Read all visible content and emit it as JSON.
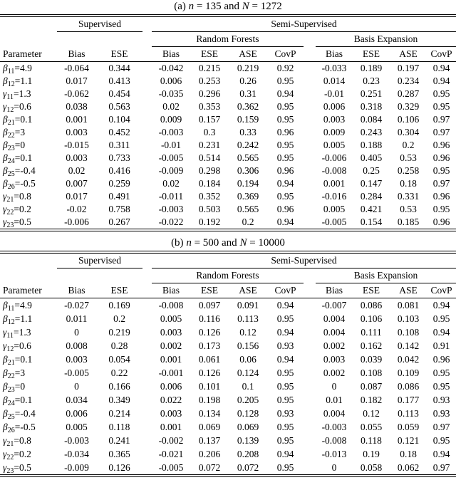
{
  "headers": {
    "parameter": "Parameter",
    "supervised": "Supervised",
    "semi_supervised": "Semi-Supervised",
    "random_forests": "Random Forests",
    "basis_expansion": "Basis Expansion",
    "bias": "Bias",
    "ese": "ESE",
    "ase": "ASE",
    "covp": "CovP"
  },
  "colors": {
    "text": "#000000",
    "background": "#ffffff",
    "rule": "#000000"
  },
  "tables": [
    {
      "id": "a",
      "caption_parts": [
        {
          "t": "(a) "
        },
        {
          "t": "n",
          "i": true
        },
        {
          "t": " = 135 and "
        },
        {
          "t": "N",
          "i": true
        },
        {
          "t": " = 1272"
        }
      ],
      "rows": [
        {
          "param": {
            "sym": "β",
            "sub": "11",
            "eq": "=4.9"
          },
          "values": [
            "-0.064",
            "0.344",
            "-0.042",
            "0.215",
            "0.219",
            "0.92",
            "-0.033",
            "0.189",
            "0.197",
            "0.94"
          ]
        },
        {
          "param": {
            "sym": "β",
            "sub": "12",
            "eq": "=1.1"
          },
          "values": [
            "0.017",
            "0.413",
            "0.006",
            "0.253",
            "0.26",
            "0.95",
            "0.014",
            "0.23",
            "0.234",
            "0.94"
          ]
        },
        {
          "param": {
            "sym": "γ",
            "sub": "11",
            "eq": "=1.3"
          },
          "values": [
            "-0.062",
            "0.454",
            "-0.035",
            "0.296",
            "0.31",
            "0.94",
            "-0.01",
            "0.251",
            "0.287",
            "0.95"
          ]
        },
        {
          "param": {
            "sym": "γ",
            "sub": "12",
            "eq": "=0.6"
          },
          "values": [
            "0.038",
            "0.563",
            "0.02",
            "0.353",
            "0.362",
            "0.95",
            "0.006",
            "0.318",
            "0.329",
            "0.95"
          ]
        },
        {
          "param": {
            "sym": "β",
            "sub": "21",
            "eq": "=0.1"
          },
          "values": [
            "0.001",
            "0.104",
            "0.009",
            "0.157",
            "0.159",
            "0.95",
            "0.003",
            "0.084",
            "0.106",
            "0.97"
          ]
        },
        {
          "param": {
            "sym": "β",
            "sub": "22",
            "eq": "=3"
          },
          "values": [
            "0.003",
            "0.452",
            "-0.003",
            "0.3",
            "0.33",
            "0.96",
            "0.009",
            "0.243",
            "0.304",
            "0.97"
          ]
        },
        {
          "param": {
            "sym": "β",
            "sub": "23",
            "eq": "=0"
          },
          "values": [
            "-0.015",
            "0.311",
            "-0.01",
            "0.231",
            "0.242",
            "0.95",
            "0.005",
            "0.188",
            "0.2",
            "0.96"
          ]
        },
        {
          "param": {
            "sym": "β",
            "sub": "24",
            "eq": "=0.1"
          },
          "values": [
            "0.003",
            "0.733",
            "-0.005",
            "0.514",
            "0.565",
            "0.95",
            "-0.006",
            "0.405",
            "0.53",
            "0.96"
          ]
        },
        {
          "param": {
            "sym": "β",
            "sub": "25",
            "eq": "=-0.4"
          },
          "values": [
            "0.02",
            "0.416",
            "-0.009",
            "0.298",
            "0.306",
            "0.96",
            "-0.008",
            "0.25",
            "0.258",
            "0.95"
          ]
        },
        {
          "param": {
            "sym": "β",
            "sub": "26",
            "eq": "=-0.5"
          },
          "values": [
            "0.007",
            "0.259",
            "0.02",
            "0.184",
            "0.194",
            "0.94",
            "0.001",
            "0.147",
            "0.18",
            "0.97"
          ]
        },
        {
          "param": {
            "sym": "γ",
            "sub": "21",
            "eq": "=0.8"
          },
          "values": [
            "0.017",
            "0.491",
            "-0.011",
            "0.352",
            "0.369",
            "0.95",
            "-0.016",
            "0.284",
            "0.331",
            "0.96"
          ]
        },
        {
          "param": {
            "sym": "γ",
            "sub": "22",
            "eq": "=0.2"
          },
          "values": [
            "-0.02",
            "0.758",
            "-0.003",
            "0.503",
            "0.565",
            "0.96",
            "0.005",
            "0.421",
            "0.53",
            "0.95"
          ]
        },
        {
          "param": {
            "sym": "γ",
            "sub": "23",
            "eq": "=0.5"
          },
          "values": [
            "-0.006",
            "0.267",
            "-0.022",
            "0.192",
            "0.2",
            "0.94",
            "-0.005",
            "0.154",
            "0.185",
            "0.96"
          ]
        }
      ]
    },
    {
      "id": "b",
      "caption_parts": [
        {
          "t": "(b) "
        },
        {
          "t": "n",
          "i": true
        },
        {
          "t": " = 500 and "
        },
        {
          "t": "N",
          "i": true
        },
        {
          "t": " = 10000"
        }
      ],
      "rows": [
        {
          "param": {
            "sym": "β",
            "sub": "11",
            "eq": "=4.9"
          },
          "values": [
            "-0.027",
            "0.169",
            "-0.008",
            "0.097",
            "0.091",
            "0.94",
            "-0.007",
            "0.086",
            "0.081",
            "0.94"
          ]
        },
        {
          "param": {
            "sym": "β",
            "sub": "12",
            "eq": "=1.1"
          },
          "values": [
            "0.011",
            "0.2",
            "0.005",
            "0.116",
            "0.113",
            "0.95",
            "0.004",
            "0.106",
            "0.103",
            "0.95"
          ]
        },
        {
          "param": {
            "sym": "γ",
            "sub": "11",
            "eq": "=1.3"
          },
          "values": [
            "0",
            "0.219",
            "0.003",
            "0.126",
            "0.12",
            "0.94",
            "0.004",
            "0.111",
            "0.108",
            "0.94"
          ]
        },
        {
          "param": {
            "sym": "γ",
            "sub": "12",
            "eq": "=0.6"
          },
          "values": [
            "0.008",
            "0.28",
            "0.002",
            "0.173",
            "0.156",
            "0.93",
            "0.002",
            "0.162",
            "0.142",
            "0.91"
          ]
        },
        {
          "param": {
            "sym": "β",
            "sub": "21",
            "eq": "=0.1"
          },
          "values": [
            "0.003",
            "0.054",
            "0.001",
            "0.061",
            "0.06",
            "0.94",
            "0.003",
            "0.039",
            "0.042",
            "0.96"
          ]
        },
        {
          "param": {
            "sym": "β",
            "sub": "22",
            "eq": "=3"
          },
          "values": [
            "-0.005",
            "0.22",
            "-0.001",
            "0.126",
            "0.124",
            "0.95",
            "0.002",
            "0.108",
            "0.109",
            "0.95"
          ]
        },
        {
          "param": {
            "sym": "β",
            "sub": "23",
            "eq": "=0"
          },
          "values": [
            "0",
            "0.166",
            "0.006",
            "0.101",
            "0.1",
            "0.95",
            "0",
            "0.087",
            "0.086",
            "0.95"
          ]
        },
        {
          "param": {
            "sym": "β",
            "sub": "24",
            "eq": "=0.1"
          },
          "values": [
            "0.034",
            "0.349",
            "0.022",
            "0.198",
            "0.205",
            "0.95",
            "0.01",
            "0.182",
            "0.177",
            "0.93"
          ]
        },
        {
          "param": {
            "sym": "β",
            "sub": "25",
            "eq": "=-0.4"
          },
          "values": [
            "0.006",
            "0.214",
            "0.003",
            "0.134",
            "0.128",
            "0.93",
            "0.004",
            "0.12",
            "0.113",
            "0.93"
          ]
        },
        {
          "param": {
            "sym": "β",
            "sub": "26",
            "eq": "=-0.5"
          },
          "values": [
            "0.005",
            "0.118",
            "0.001",
            "0.069",
            "0.069",
            "0.95",
            "-0.003",
            "0.055",
            "0.059",
            "0.97"
          ]
        },
        {
          "param": {
            "sym": "γ",
            "sub": "21",
            "eq": "=0.8"
          },
          "values": [
            "-0.003",
            "0.241",
            "-0.002",
            "0.137",
            "0.139",
            "0.95",
            "-0.008",
            "0.118",
            "0.121",
            "0.95"
          ]
        },
        {
          "param": {
            "sym": "γ",
            "sub": "22",
            "eq": "=0.2"
          },
          "values": [
            "-0.034",
            "0.365",
            "-0.021",
            "0.206",
            "0.208",
            "0.94",
            "-0.013",
            "0.19",
            "0.18",
            "0.94"
          ]
        },
        {
          "param": {
            "sym": "γ",
            "sub": "23",
            "eq": "=0.5"
          },
          "values": [
            "-0.009",
            "0.126",
            "-0.005",
            "0.072",
            "0.072",
            "0.95",
            "0",
            "0.058",
            "0.062",
            "0.97"
          ]
        }
      ]
    }
  ]
}
